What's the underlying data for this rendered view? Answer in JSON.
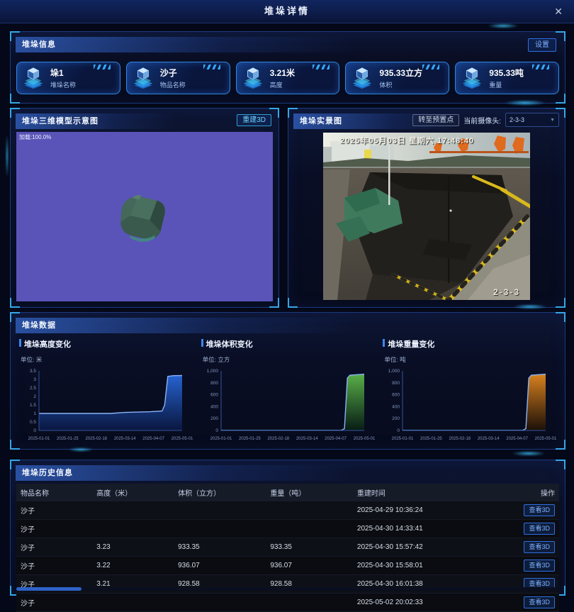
{
  "header": {
    "title": "堆垛详情",
    "close_icon": "✕"
  },
  "info_panel": {
    "title": "堆垛信息",
    "settings_button": "设置",
    "cards": [
      {
        "value": "垛1",
        "label": "堆垛名称",
        "icon": "stack-name-icon"
      },
      {
        "value": "沙子",
        "label": "物品名称",
        "icon": "goods-name-icon"
      },
      {
        "value": "3.21米",
        "label": "高度",
        "icon": "height-icon"
      },
      {
        "value": "935.33立方",
        "label": "体积",
        "icon": "volume-icon"
      },
      {
        "value": "935.33吨",
        "label": "重量",
        "icon": "weight-icon"
      }
    ]
  },
  "model_panel": {
    "title": "堆垛三维模型示意图",
    "rebuild_button": "重建3D",
    "loading_text": "加载:100.0%"
  },
  "camera_panel": {
    "title": "堆垛实景图",
    "preset_button": "转至预置点",
    "camera_label": "当前摄像头:",
    "camera_value": "2-3-3",
    "osd_timestamp": "2025年05月03日 星期六 17:48:40",
    "osd_camera_id": "2-3-3"
  },
  "data_panel": {
    "title": "堆垛数据"
  },
  "chart_data": [
    {
      "type": "area",
      "title": "堆垛高度变化",
      "unit_label": "单位: 米",
      "ylim": [
        0,
        3.5
      ],
      "yticks": [
        {
          "v": 0,
          "label": "0"
        },
        {
          "v": 0.5,
          "label": "0.5"
        },
        {
          "v": 1,
          "label": "1"
        },
        {
          "v": 1.5,
          "label": "1.5"
        },
        {
          "v": 2,
          "label": "2"
        },
        {
          "v": 2.5,
          "label": "2.5"
        },
        {
          "v": 3,
          "label": "3"
        },
        {
          "v": 3.5,
          "label": "3.5"
        }
      ],
      "x": [
        "2025-01-01",
        "2025-01-25",
        "2025-02-18",
        "2025-03-14",
        "2025-04-07",
        "2025-05-01"
      ],
      "points": [
        [
          0,
          1.0
        ],
        [
          0.5,
          1.0
        ],
        [
          0.6,
          1.06
        ],
        [
          0.78,
          1.1
        ],
        [
          0.86,
          1.14
        ],
        [
          0.878,
          1.5
        ],
        [
          0.9,
          3.18
        ],
        [
          0.94,
          3.22
        ],
        [
          1,
          3.23
        ]
      ],
      "line_color": "#8ab4f8",
      "fill_top": "rgba(43,111,232,0.95)",
      "fill_bottom": "rgba(10,25,70,0.85)",
      "legend_position": "none",
      "grid": false
    },
    {
      "type": "area",
      "title": "堆垛体积变化",
      "unit_label": "单位: 立方",
      "ylim": [
        0,
        1000
      ],
      "yticks": [
        {
          "v": 0,
          "label": "0"
        },
        {
          "v": 200,
          "label": "200"
        },
        {
          "v": 400,
          "label": "400"
        },
        {
          "v": 600,
          "label": "600"
        },
        {
          "v": 800,
          "label": "800"
        },
        {
          "v": 1000,
          "label": "1,000"
        }
      ],
      "x": [
        "2025-01-01",
        "2025-01-25",
        "2025-02-18",
        "2025-03-14",
        "2025-04-07",
        "2025-05-01"
      ],
      "points": [
        [
          0,
          2
        ],
        [
          0.84,
          2
        ],
        [
          0.862,
          30
        ],
        [
          0.882,
          880
        ],
        [
          0.9,
          928
        ],
        [
          1,
          945
        ]
      ],
      "line_color": "#8ab4f8",
      "fill_top": "rgba(99,194,78,0.95)",
      "fill_bottom": "rgba(8,30,20,0.9)",
      "legend_position": "none",
      "grid": false
    },
    {
      "type": "area",
      "title": "堆垛重量变化",
      "unit_label": "单位: 吨",
      "ylim": [
        0,
        1000
      ],
      "yticks": [
        {
          "v": 0,
          "label": "0"
        },
        {
          "v": 200,
          "label": "200"
        },
        {
          "v": 400,
          "label": "400"
        },
        {
          "v": 600,
          "label": "600"
        },
        {
          "v": 800,
          "label": "800"
        },
        {
          "v": 1000,
          "label": "1,000"
        }
      ],
      "x": [
        "2025-01-01",
        "2025-01-25",
        "2025-02-18",
        "2025-03-14",
        "2025-04-07",
        "2025-05-01"
      ],
      "points": [
        [
          0,
          2
        ],
        [
          0.84,
          2
        ],
        [
          0.862,
          30
        ],
        [
          0.882,
          880
        ],
        [
          0.9,
          928
        ],
        [
          1,
          945
        ]
      ],
      "line_color": "#8ab4f8",
      "fill_top": "rgba(240,144,32,0.95)",
      "fill_bottom": "rgba(30,16,6,0.9)",
      "legend_position": "none",
      "grid": false
    }
  ],
  "history_panel": {
    "title": "堆垛历史信息",
    "columns": [
      "物品名称",
      "高度（米）",
      "体积（立方）",
      "重量（吨）",
      "重建时间",
      "操作"
    ],
    "action_label": "查看3D",
    "rows": [
      {
        "name": "沙子",
        "height": "",
        "volume": "",
        "weight": "",
        "time": "2025-04-29 10:36:24"
      },
      {
        "name": "沙子",
        "height": "",
        "volume": "",
        "weight": "",
        "time": "2025-04-30 14:33:41"
      },
      {
        "name": "沙子",
        "height": "3.23",
        "volume": "933.35",
        "weight": "933.35",
        "time": "2025-04-30 15:57:42"
      },
      {
        "name": "沙子",
        "height": "3.22",
        "volume": "936.07",
        "weight": "936.07",
        "time": "2025-04-30 15:58:01"
      },
      {
        "name": "沙子",
        "height": "3.21",
        "volume": "928.58",
        "weight": "928.58",
        "time": "2025-04-30 16:01:38"
      },
      {
        "name": "沙子",
        "height": "",
        "volume": "",
        "weight": "",
        "time": "2025-05-02 20:02:33"
      }
    ]
  },
  "colors": {
    "accent_blue": "#2f6fe0",
    "corner_cyan": "#35a6e8",
    "model_viewport_purple": "#5a54b8",
    "chart_line": "#8ab4f8"
  }
}
